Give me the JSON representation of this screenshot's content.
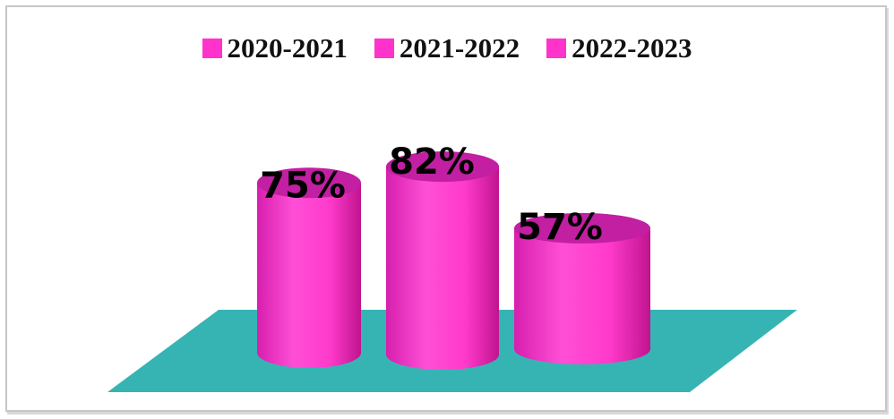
{
  "chart_data": {
    "type": "bar",
    "style": "3d-cylinder",
    "title": "",
    "xlabel": "",
    "ylabel": "",
    "ylim": [
      0,
      100
    ],
    "legend_position": "top",
    "grid": false,
    "series": [
      {
        "name": "2020-2021",
        "values": [
          75
        ],
        "label": "75%"
      },
      {
        "name": "2021-2022",
        "values": [
          82
        ],
        "label": "82%"
      },
      {
        "name": "2022-2023",
        "values": [
          57
        ],
        "label": "57%"
      }
    ],
    "colors": {
      "bar": "#ff33cc",
      "bar_light": "#ff66dd",
      "bar_dark": "#cc1aa6",
      "top": "#c21fa2",
      "floor": "#36b4b4",
      "legend_swatch": "#ff33cc"
    }
  }
}
